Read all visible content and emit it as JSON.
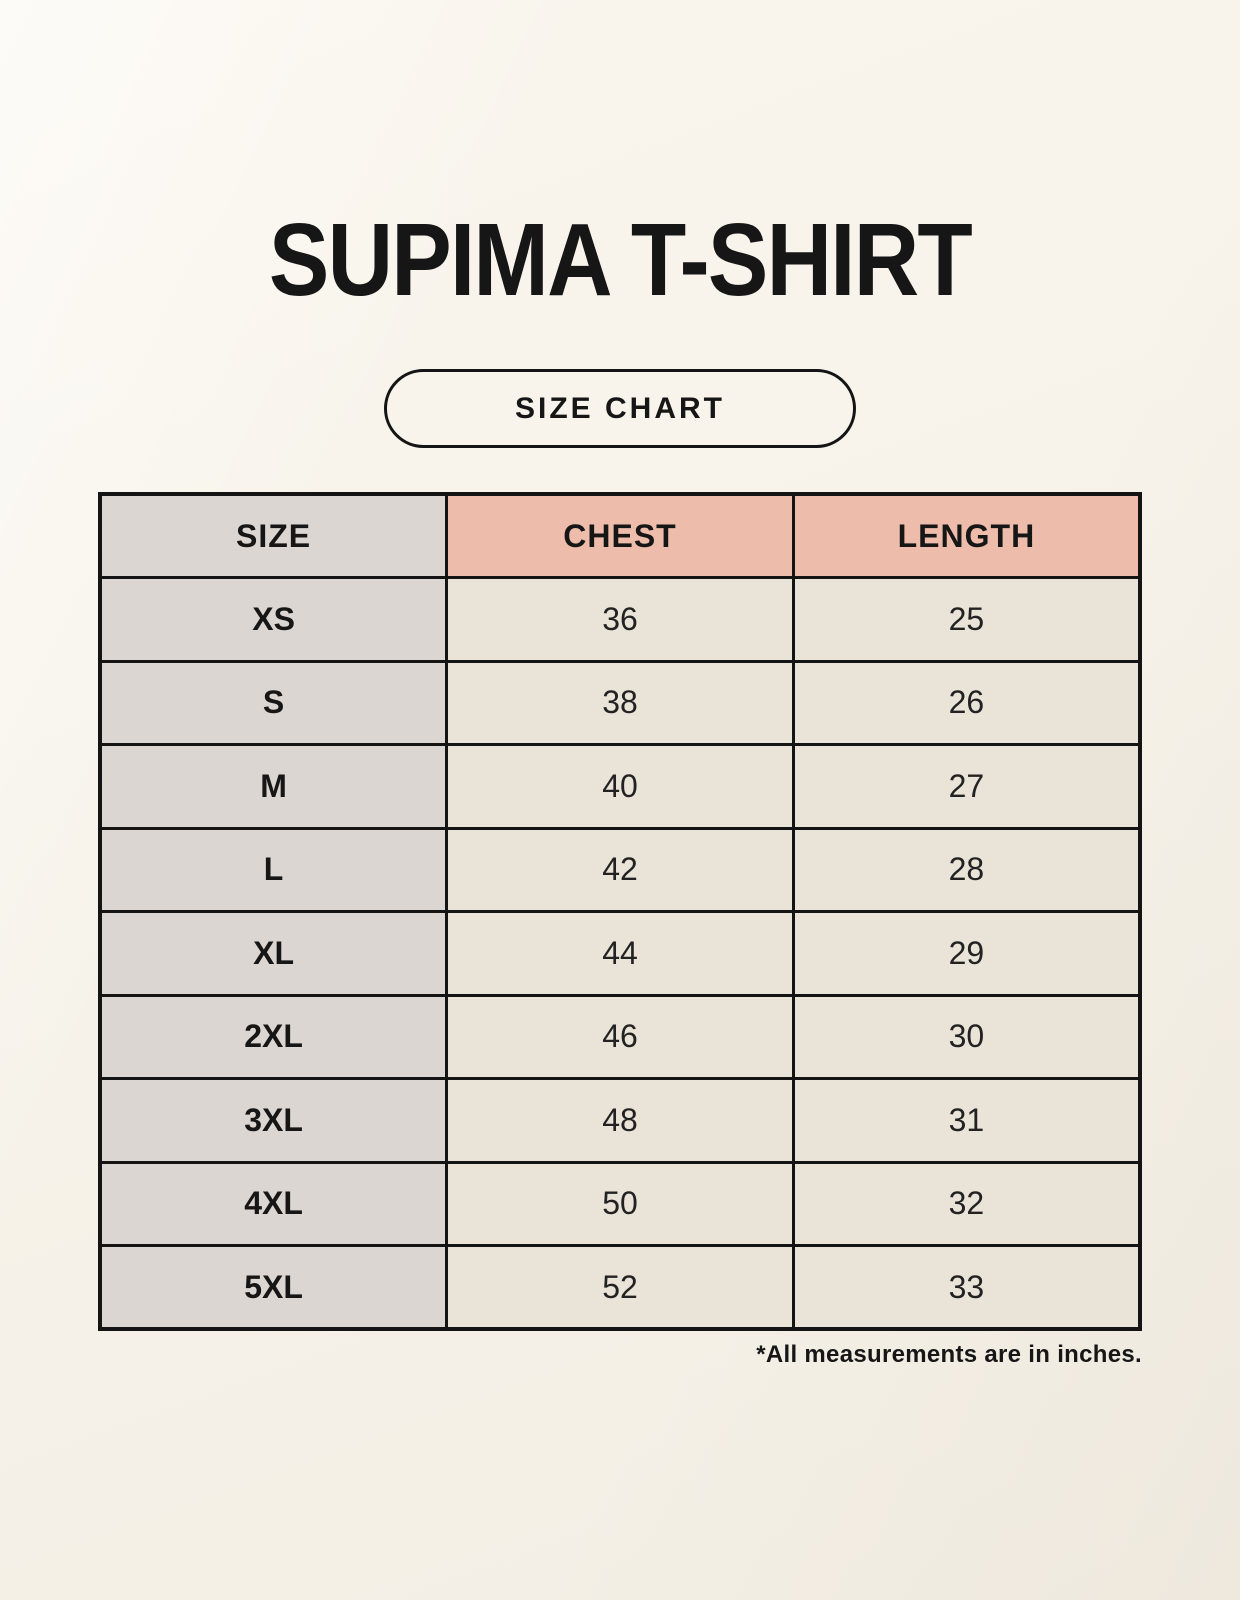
{
  "page": {
    "title": "SUPIMA T-SHIRT",
    "button_label": "SIZE CHART",
    "footnote": "*All measurements are in inches."
  },
  "colors": {
    "background": "#f7f3eb",
    "size_column_bg": "#dcd6d2",
    "header_accent_bg": "#eebcab",
    "cell_bg": "#eae3d8",
    "border": "#141414",
    "text": "#161616"
  },
  "chart_data": {
    "type": "table",
    "title": "SUPIMA T-SHIRT size chart",
    "units": "inches",
    "columns": [
      "SIZE",
      "CHEST",
      "LENGTH"
    ],
    "rows": [
      [
        "XS",
        "36",
        "25"
      ],
      [
        "S",
        "38",
        "26"
      ],
      [
        "M",
        "40",
        "27"
      ],
      [
        "L",
        "42",
        "28"
      ],
      [
        "XL",
        "44",
        "29"
      ],
      [
        "2XL",
        "46",
        "30"
      ],
      [
        "3XL",
        "48",
        "31"
      ],
      [
        "4XL",
        "50",
        "32"
      ],
      [
        "5XL",
        "52",
        "33"
      ]
    ]
  }
}
